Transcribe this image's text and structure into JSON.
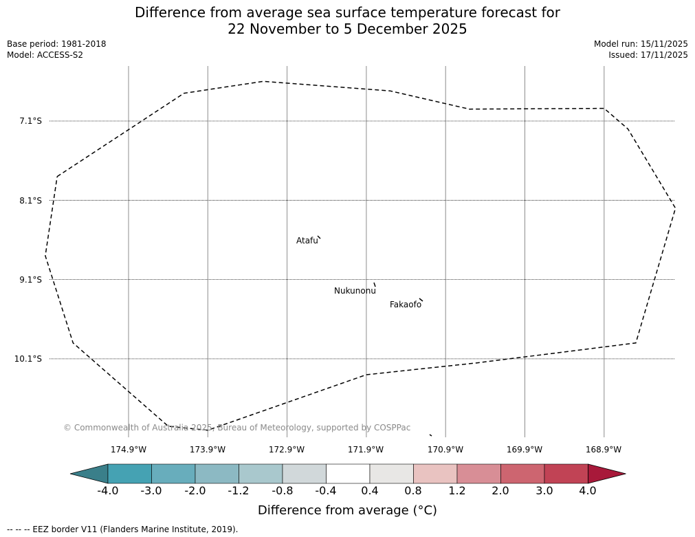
{
  "title": {
    "line1": "Difference from average sea surface temperature forecast for",
    "line2": "22 November to 5 December 2025"
  },
  "meta_left": {
    "base_period": "Base period: 1981-2018",
    "model": "Model: ACCESS-S2"
  },
  "meta_right": {
    "model_run": "Model run: 15/11/2025",
    "issued": "Issued: 17/11/2025"
  },
  "map": {
    "latitude_labels": [
      "7.1°S",
      "8.1°S",
      "9.1°S",
      "10.1°S"
    ],
    "longitude_labels": [
      "174.9°W",
      "173.9°W",
      "172.9°W",
      "171.9°W",
      "170.9°W",
      "169.9°W",
      "168.9°W"
    ],
    "places": [
      {
        "name": "Atafu",
        "lon": -172.5,
        "lat": -8.55
      },
      {
        "name": "Nukunonu",
        "lon": -171.85,
        "lat": -9.18
      },
      {
        "name": "Fakaofo",
        "lon": -171.25,
        "lat": -9.35
      }
    ],
    "copyright": "© Commonwealth of Australia 2025, Bureau of Meteorology, supported by COSPPac",
    "eez_border": [
      [
        -175.8,
        -7.8
      ],
      [
        -174.2,
        -6.75
      ],
      [
        -173.2,
        -6.6
      ],
      [
        -171.6,
        -6.72
      ],
      [
        -170.6,
        -6.95
      ],
      [
        -168.9,
        -6.94
      ],
      [
        -168.6,
        -7.2
      ],
      [
        -168.0,
        -8.2
      ],
      [
        -168.5,
        -9.9
      ],
      [
        -170.5,
        -10.15
      ],
      [
        -171.9,
        -10.3
      ],
      [
        -173.9,
        -11.0
      ],
      [
        -174.4,
        -10.95
      ],
      [
        -175.6,
        -9.9
      ],
      [
        -175.95,
        -8.8
      ],
      [
        -175.8,
        -7.8
      ]
    ]
  },
  "colorbar": {
    "ticks": [
      "-4.0",
      "-3.0",
      "-2.0",
      "-1.2",
      "-0.8",
      "-0.4",
      "0.4",
      "0.8",
      "1.2",
      "2.0",
      "3.0",
      "4.0"
    ],
    "colors": [
      "#45a2b3",
      "#68adbc",
      "#8cb9c3",
      "#a9c8cd",
      "#d1d8da",
      "#ffffff",
      "#e8e7e5",
      "#e9c3c1",
      "#d88e96",
      "#cd6570",
      "#c14355"
    ],
    "under_color": "#3a7f8a",
    "over_color": "#a8193a",
    "label": "Difference from average (°C)"
  },
  "footnote": "--  --  -- EEZ border V11 (Flanders Marine Institute, 2019)."
}
